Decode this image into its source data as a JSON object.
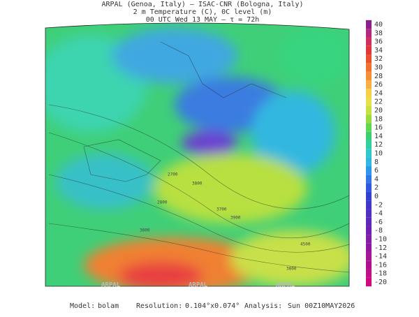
{
  "header": {
    "line1": "ARPAL (Genoa, Italy)  –  ISAC-CNR (Bologna, Italy)",
    "line2": "2 m Temperature (C), 0C level (m)",
    "line3": "00 UTC Wed 13 MAY  –  τ = 72h"
  },
  "colorbar": {
    "ticks": [
      40,
      38,
      36,
      34,
      32,
      30,
      28,
      26,
      24,
      22,
      20,
      18,
      16,
      14,
      12,
      10,
      8,
      6,
      4,
      2,
      0,
      -2,
      -4,
      -6,
      -8,
      -10,
      -12,
      -14,
      -16,
      -18,
      -20
    ]
  },
  "map": {
    "contour_labels": [
      "2700",
      "3800",
      "2800",
      "3700",
      "3900",
      "3600",
      "4500",
      "3800"
    ],
    "watermarks": [
      "ARPAL",
      "ARPAL",
      "ARPAL"
    ]
  },
  "footer": {
    "model_label": "Model:",
    "model": "bolam",
    "resolution_label": "Resolution:",
    "resolution": "0.104°x0.074°",
    "analysis_label": "Analysis:",
    "analysis": "Sun 00Z10MAY2026"
  }
}
